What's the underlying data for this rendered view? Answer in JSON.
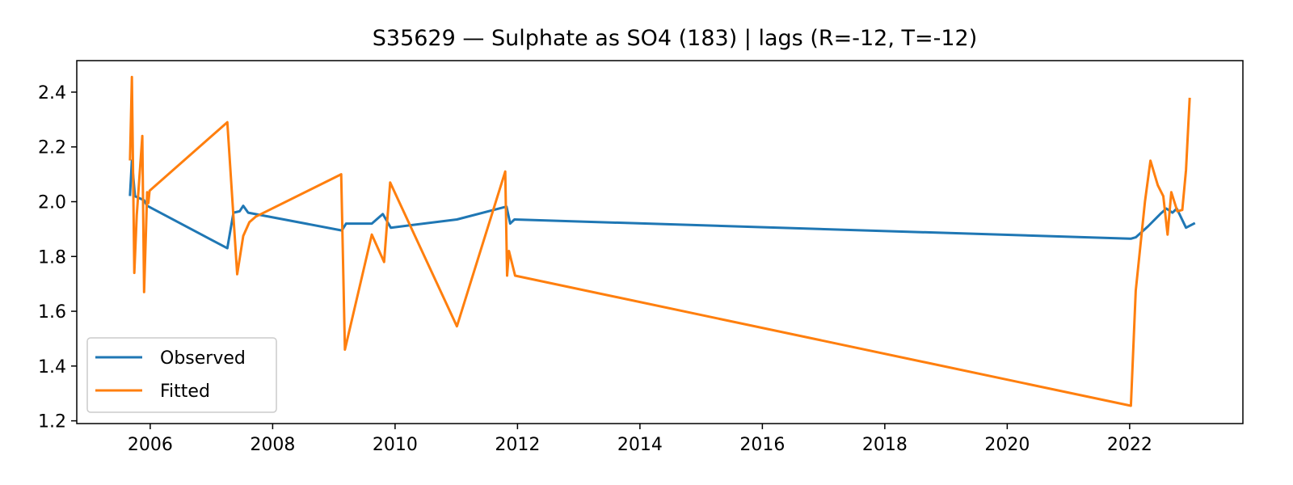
{
  "chart_data": {
    "type": "line",
    "title": "S35629 — Sulphate as SO4 (183) | lags (R=-12, T=-12)",
    "xlabel": "",
    "ylabel": "",
    "xlim": [
      2004.8,
      2023.85
    ],
    "ylim": [
      1.19,
      2.515
    ],
    "xticks": [
      2006,
      2008,
      2010,
      2012,
      2014,
      2016,
      2018,
      2020,
      2022
    ],
    "xtick_labels": [
      "2006",
      "2008",
      "2010",
      "2012",
      "2014",
      "2016",
      "2018",
      "2020",
      "2022"
    ],
    "yticks": [
      1.2,
      1.4,
      1.6,
      1.8,
      2.0,
      2.2,
      2.4
    ],
    "ytick_labels": [
      "1.2",
      "1.4",
      "1.6",
      "1.8",
      "2.0",
      "2.2",
      "2.4"
    ],
    "grid": false,
    "legend_position": "lower-left",
    "series": [
      {
        "name": "Observed",
        "color": "#1f77b4",
        "x": [
          2005.67,
          2005.7,
          2005.75,
          2005.9,
          2005.95,
          2007.26,
          2007.36,
          2007.46,
          2007.52,
          2007.6,
          2009.13,
          2009.2,
          2009.62,
          2009.8,
          2009.93,
          2011.01,
          2011.82,
          2011.88,
          2011.95,
          2022.02,
          2022.1,
          2022.3,
          2022.5,
          2022.6,
          2022.7,
          2022.77,
          2022.92,
          2023.05
        ],
        "y": [
          2.025,
          2.15,
          2.02,
          2.005,
          1.985,
          1.83,
          1.96,
          1.965,
          1.985,
          1.96,
          1.895,
          1.92,
          1.92,
          1.955,
          1.905,
          1.935,
          1.982,
          1.92,
          1.935,
          1.865,
          1.87,
          1.91,
          1.955,
          1.975,
          1.96,
          1.975,
          1.905,
          1.92
        ]
      },
      {
        "name": "Fitted",
        "color": "#ff7f0e",
        "x": [
          2005.67,
          2005.7,
          2005.74,
          2005.78,
          2005.87,
          2005.9,
          2005.95,
          2005.97,
          2005.99,
          2007.26,
          2007.42,
          2007.52,
          2007.62,
          2007.72,
          2009.12,
          2009.18,
          2009.62,
          2009.82,
          2009.92,
          2011.01,
          2011.8,
          2011.83,
          2011.86,
          2011.96,
          2022.02,
          2022.1,
          2022.25,
          2022.34,
          2022.46,
          2022.55,
          2022.62,
          2022.68,
          2022.78,
          2022.86,
          2022.92,
          2022.98
        ],
        "y": [
          2.155,
          2.455,
          1.74,
          1.95,
          2.24,
          1.67,
          2.035,
          1.995,
          2.04,
          2.29,
          1.735,
          1.875,
          1.925,
          1.945,
          2.1,
          1.46,
          1.88,
          1.78,
          2.07,
          1.545,
          2.11,
          1.73,
          1.82,
          1.73,
          1.255,
          1.675,
          2.0,
          2.15,
          2.06,
          2.02,
          1.88,
          2.035,
          1.965,
          1.97,
          2.115,
          2.375
        ]
      }
    ]
  }
}
